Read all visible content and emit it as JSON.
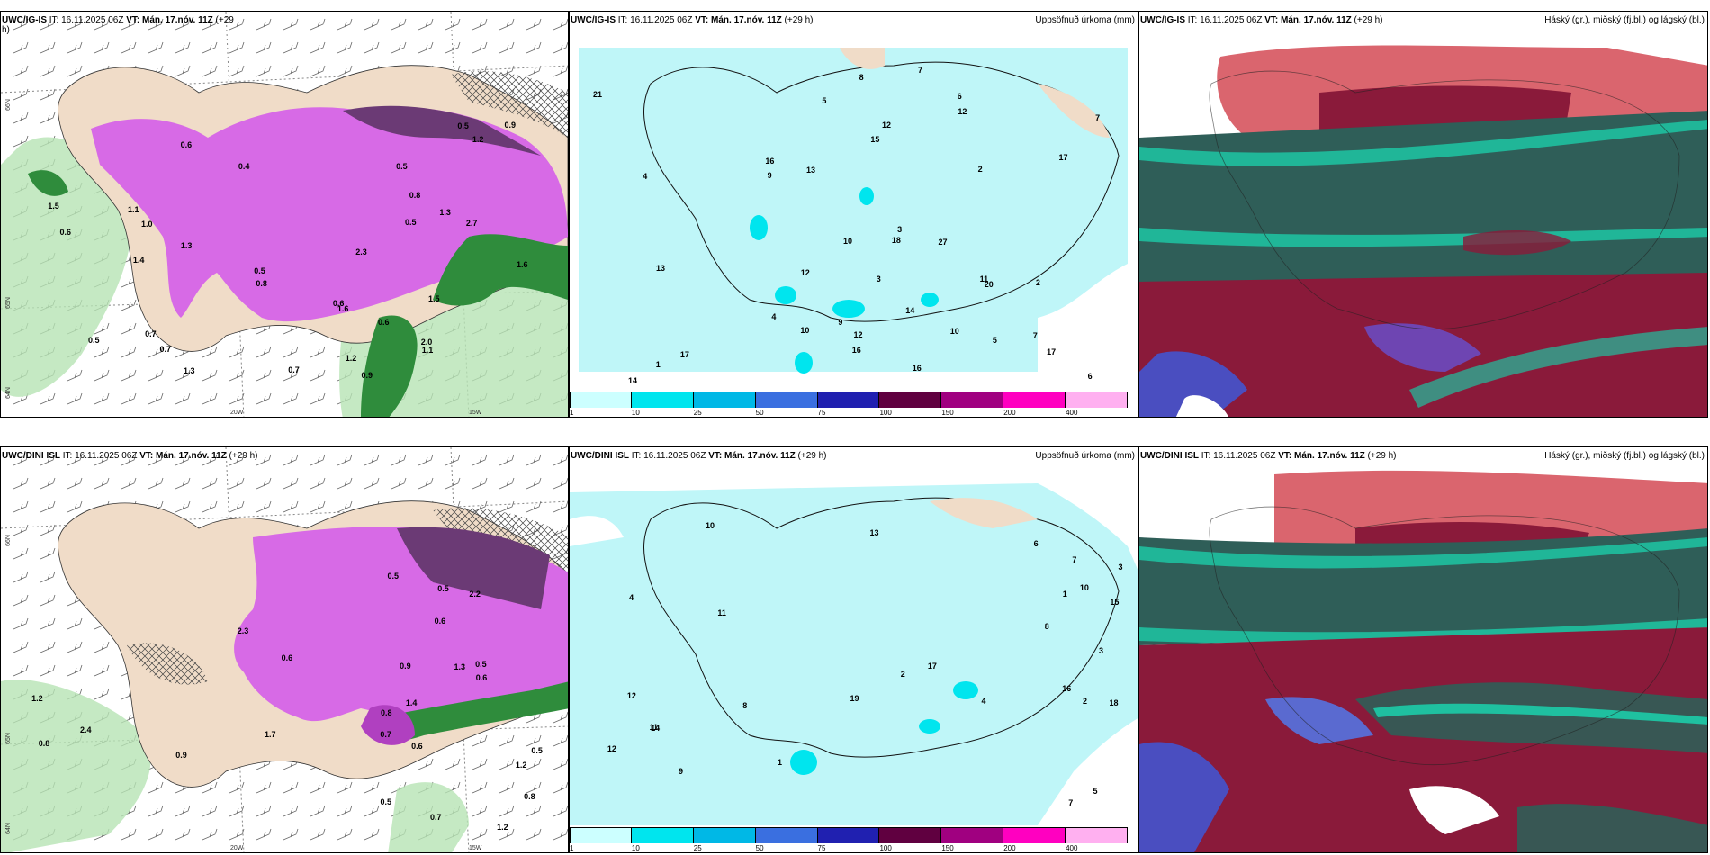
{
  "rows": [
    {
      "model": "UWC/IG-IS",
      "it_label": "IT:",
      "it_value": "16.11.2025 06Z",
      "vt_label": "VT:",
      "vt_value": "Mán. 17.nóv. 11Z",
      "lead": "(+29 h)",
      "left_title_overflow": "h)",
      "mid_right_title": "Uppsöfnuð úrkoma (mm)",
      "right_right_title": "Háský (gr.), miðský (fj.bl.) og lágský (bl.)",
      "left_labels": [
        "0.9",
        "0.6",
        "0.7",
        "1.1",
        "1.3",
        "1.2",
        "1.6",
        "1.3",
        "0.8",
        "0.7",
        "0.5",
        "1.5",
        "0.5",
        "0.6",
        "0.5",
        "0.5",
        "0.6",
        "1.2",
        "1.5",
        "2.7",
        "2.0",
        "1.6",
        "1.3",
        "1.1",
        "2.3",
        "0.8",
        "1.4",
        "1.0",
        "0.7",
        "0.4",
        "0.6",
        "0.9",
        "0.5"
      ],
      "mid_labels": [
        "1",
        "2",
        "3",
        "3",
        "5",
        "7",
        "7",
        "6",
        "5",
        "4",
        "6",
        "9",
        "10",
        "8",
        "10",
        "16",
        "11",
        "13",
        "10",
        "7",
        "21",
        "17",
        "16",
        "27",
        "20",
        "12",
        "13",
        "15",
        "17",
        "14",
        "17",
        "12",
        "12",
        "14",
        "18",
        "16",
        "12",
        "2",
        "4",
        "9"
      ],
      "coords": {
        "n66": "66N",
        "n65": "65N",
        "n64": "64N",
        "w20": "20W",
        "w15": "15W"
      }
    },
    {
      "model": "UWC/DINI ISL",
      "it_label": "IT:",
      "it_value": "16.11.2025 06Z",
      "vt_label": "VT:",
      "vt_value": "Mán. 17.nóv. 11Z",
      "lead": "(+29 h)",
      "left_title_overflow": "",
      "mid_right_title": "Uppsöfnuð úrkoma (mm)",
      "right_right_title": "Háský (gr.), miðský (fj.bl.) og lágský (bl.)",
      "left_labels": [
        "0.7",
        "0.5",
        "1.3",
        "1.2",
        "0.5",
        "0.6",
        "0.5",
        "0.6",
        "0.8",
        "0.7",
        "1.4",
        "0.8",
        "0.8",
        "0.6",
        "0.9",
        "1.2",
        "2.2",
        "2.4",
        "0.5",
        "2.3",
        "1.7",
        "1.2",
        "0.9",
        "0.5",
        "0.6"
      ],
      "mid_labels": [
        "11",
        "14",
        "4",
        "1",
        "2",
        "3",
        "7",
        "8",
        "9",
        "10",
        "13",
        "12",
        "17",
        "15",
        "16",
        "19",
        "18",
        "12",
        "11",
        "8",
        "7",
        "6",
        "5",
        "4",
        "3",
        "2",
        "1",
        "10"
      ],
      "coords": {
        "n66": "66N",
        "n65": "65N",
        "n64": "64N",
        "w20": "20W",
        "w15": "15W"
      }
    }
  ],
  "colorbar": {
    "ticks": [
      "1",
      "10",
      "25",
      "50",
      "75",
      "100",
      "150",
      "200",
      "400"
    ],
    "colors": [
      "#ccffff",
      "#00e5ee",
      "#00b8e6",
      "#3a6fe0",
      "#2020b0",
      "#600040",
      "#a00080",
      "#ff00c0",
      "#ffb0f0"
    ]
  },
  "colors": {
    "ocean_precip": "#bff6f8",
    "land": "#f0dcc8",
    "purple": "#d76ae6",
    "dark_purple": "#6b3a75",
    "green": "#2f8c3c",
    "light_green": "#b6e4b4",
    "cloud_dark": "#2f5e58",
    "cloud_teal": "#1fc0a0",
    "cloud_red": "#8a1a3a"
  }
}
